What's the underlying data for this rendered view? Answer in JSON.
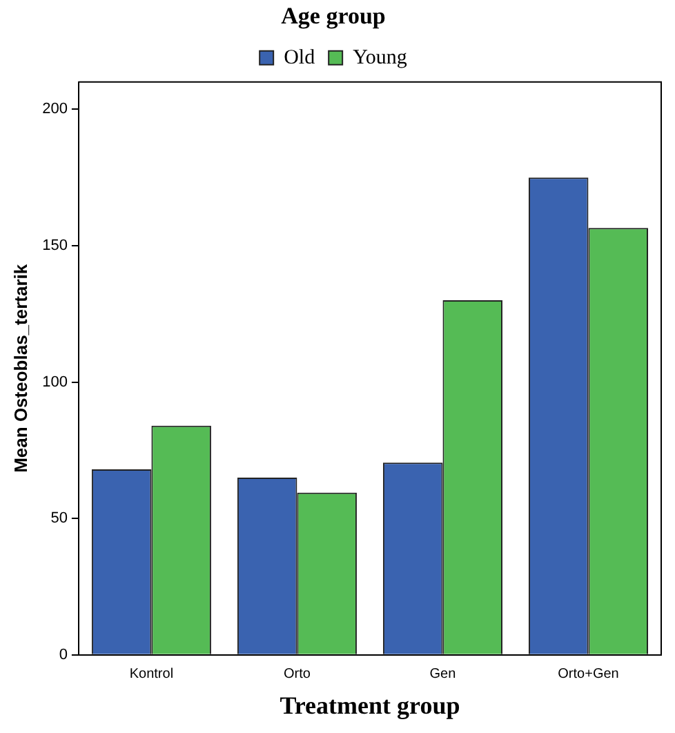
{
  "chart_data": {
    "type": "bar",
    "xlabel": "Treatment group",
    "ylabel": "Mean Osteoblas_tertarik",
    "legend_title": "Age group",
    "legend": "top",
    "categories": [
      "Kontrol",
      "Orto",
      "Gen",
      "Orto+Gen"
    ],
    "series": [
      {
        "name": "Old",
        "color": "#3a63b0",
        "values": [
          68,
          65,
          70.5,
          175
        ]
      },
      {
        "name": "Young",
        "color": "#55bb55",
        "values": [
          84,
          59.5,
          130,
          156.5
        ]
      }
    ],
    "ylim": [
      0,
      210
    ],
    "yticks": [
      0,
      50,
      100,
      150,
      200
    ],
    "grid": false
  }
}
